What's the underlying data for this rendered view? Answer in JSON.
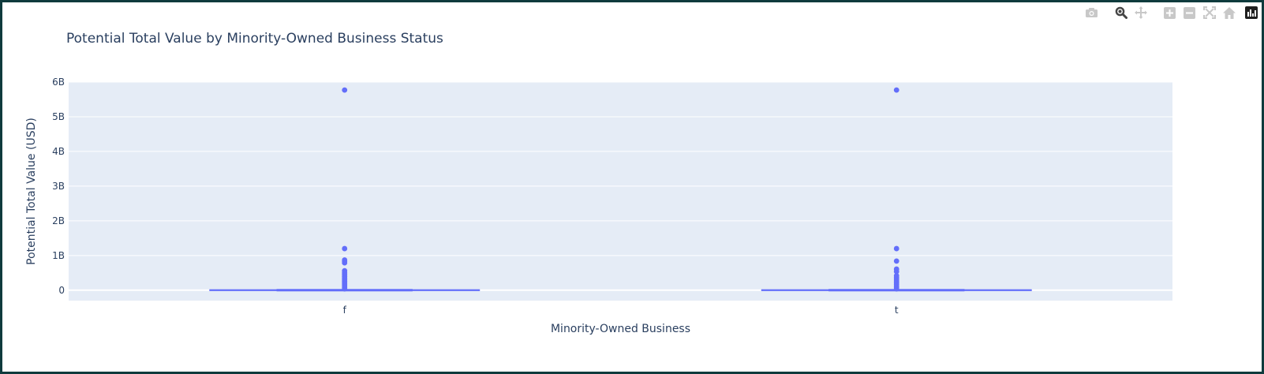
{
  "modebar": {
    "buttons": [
      {
        "name": "camera-icon",
        "label": "Download plot as a png"
      },
      {
        "name": "zoom-icon",
        "label": "Zoom"
      },
      {
        "name": "pan-icon",
        "label": "Pan"
      },
      {
        "name": "zoom-in-icon",
        "label": "Zoom in"
      },
      {
        "name": "zoom-out-icon",
        "label": "Zoom out"
      },
      {
        "name": "autoscale-icon",
        "label": "Autoscale"
      },
      {
        "name": "reset-axes-icon",
        "label": "Reset axes"
      },
      {
        "name": "plotly-logo-icon",
        "label": "Produced with Plotly"
      }
    ],
    "active": "zoom-icon"
  },
  "chart_data": {
    "type": "box",
    "title": "Potential Total Value by Minority-Owned Business Status",
    "xlabel": "Minority-Owned Business",
    "ylabel": "Potential Total Value (USD)",
    "categories": [
      "f",
      "t"
    ],
    "ylim": [
      -300000000,
      6000000000
    ],
    "yticks": [
      0,
      1000000000,
      2000000000,
      3000000000,
      4000000000,
      5000000000,
      6000000000
    ],
    "ytick_labels": [
      "0",
      "1B",
      "2B",
      "3B",
      "4B",
      "5B",
      "6B"
    ],
    "grid": true,
    "legend": "none",
    "colors": {
      "box": "#636efa",
      "plot_bg": "#e5ecf6",
      "grid": "#ffffff",
      "text": "#2a3f5f"
    },
    "series": [
      {
        "category": "f",
        "box": {
          "q1": 0,
          "median": 0,
          "q3": 1000000,
          "whisker_low": 0,
          "whisker_high": 3000000
        },
        "outliers": [
          5770000000,
          1200000000,
          870000000,
          830000000,
          790000000,
          560000000,
          510000000,
          470000000,
          430000000,
          390000000,
          350000000,
          310000000,
          270000000,
          230000000,
          190000000,
          150000000,
          110000000,
          70000000,
          40000000
        ]
      },
      {
        "category": "t",
        "box": {
          "q1": 0,
          "median": 0,
          "q3": 1000000,
          "whisker_low": 0,
          "whisker_high": 3000000
        },
        "outliers": [
          5770000000,
          1200000000,
          840000000,
          610000000,
          540000000,
          420000000,
          370000000,
          320000000,
          270000000,
          220000000,
          170000000,
          120000000,
          80000000,
          40000000
        ]
      }
    ]
  }
}
